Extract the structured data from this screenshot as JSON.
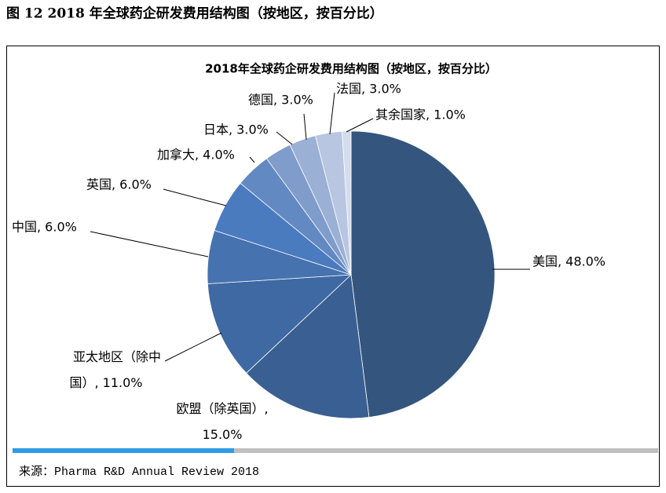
{
  "caption": "图 12   2018 年全球药企研发费用结构图（按地区，按百分比）",
  "chart_data": {
    "type": "pie",
    "title": "2018年全球药企研发费用结构图（按地区，按百分比）",
    "values": [
      48,
      15,
      11,
      6,
      6,
      4,
      3,
      3,
      3,
      1
    ],
    "value_labels": [
      "美国, 48.0%",
      "欧盟（除英国）,\n15.0%",
      "亚太地区（除中\n国）, 11.0%",
      "中国, 6.0%",
      "英国, 6.0%",
      "加拿大, 4.0%",
      "日本, 3.0%",
      "德国, 3.0%",
      "法国, 3.0%",
      "其余国家, 1.0%"
    ],
    "colors": [
      "#34557e",
      "#3a5f92",
      "#3f69a2",
      "#4672b0",
      "#4b7bbf",
      "#6389c3",
      "#7f9ccb",
      "#9bb0d5",
      "#b8c6e1",
      "#d4dced"
    ]
  },
  "source": "来源：Pharma R&D Annual Review 2018"
}
